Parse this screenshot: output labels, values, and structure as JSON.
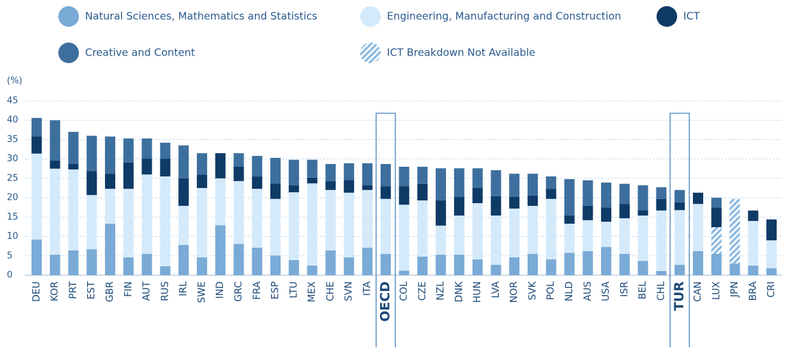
{
  "chart_data": {
    "type": "stacked_bar",
    "y_label": "(%)",
    "ylim": [
      0,
      45
    ],
    "yticks": [
      0,
      5,
      10,
      15,
      20,
      25,
      30,
      35,
      40,
      45
    ],
    "grid": true,
    "highlight": [
      19,
      35
    ],
    "categories": [
      "DEU",
      "KOR",
      "PRT",
      "EST",
      "GBR",
      "FIN",
      "AUT",
      "RUS",
      "IRL",
      "SWE",
      "IND",
      "GRC",
      "FRA",
      "ESP",
      "LTU",
      "MEX",
      "CHE",
      "SVN",
      "ITA",
      "OECD",
      "COL",
      "CZE",
      "NZL",
      "DNK",
      "HUN",
      "LVA",
      "NOR",
      "SVK",
      "POL",
      "NLD",
      "AUS",
      "USA",
      "ISR",
      "BEL",
      "CHL",
      "TUR",
      "CAN",
      "LUX",
      "JPN",
      "BRA",
      "CRI"
    ],
    "series": [
      {
        "name": "Natural Sciences, Mathematics and Statistics",
        "color": "#7aaad6",
        "values": [
          9.2,
          5.3,
          6.4,
          6.7,
          13.3,
          4.6,
          5.5,
          2.3,
          7.8,
          4.6,
          12.9,
          8.1,
          7.1,
          5.1,
          3.9,
          2.5,
          6.4,
          4.6,
          7.1,
          5.5,
          1.2,
          4.8,
          5.3,
          5.3,
          4.1,
          2.7,
          4.6,
          5.5,
          4.1,
          5.8,
          6.2,
          7.3,
          5.5,
          3.7,
          1.1,
          2.7,
          6.2,
          5.5,
          3.0,
          2.5,
          1.8
        ]
      },
      {
        "name": "Engineering, Manufacturing and Construction",
        "color": "#d4eafb",
        "values": [
          22.2,
          22.2,
          20.9,
          14.0,
          9.0,
          17.7,
          20.5,
          23.2,
          10.1,
          17.9,
          12.1,
          16.2,
          15.2,
          14.6,
          17.5,
          21.2,
          15.6,
          16.7,
          14.9,
          14.2,
          17.0,
          14.5,
          7.5,
          10.1,
          14.5,
          12.7,
          12.6,
          12.4,
          15.6,
          7.5,
          8.0,
          6.5,
          9.2,
          11.7,
          15.6,
          14.1,
          12.2,
          null,
          null,
          11.5,
          7.2
        ]
      },
      {
        "name": "ICT",
        "color": "#0e3a66",
        "values": [
          4.4,
          2.1,
          1.4,
          6.2,
          3.9,
          6.8,
          4.1,
          4.6,
          7.1,
          3.5,
          6.5,
          3.7,
          3.2,
          4.0,
          1.8,
          1.5,
          2.3,
          3.3,
          1.2,
          3.3,
          4.8,
          4.3,
          6.5,
          4.8,
          3.9,
          5.0,
          3.0,
          2.7,
          2.6,
          2.1,
          3.7,
          3.7,
          3.7,
          1.4,
          3.0,
          2.0,
          2.9,
          5.1,
          null,
          2.7,
          5.4
        ]
      },
      {
        "name": "Creative and Content",
        "color": "#3d6f9e",
        "values": [
          4.8,
          10.4,
          8.3,
          9.1,
          9.6,
          6.2,
          5.2,
          4.1,
          8.5,
          5.5,
          null,
          3.5,
          5.3,
          6.6,
          6.6,
          4.6,
          4.4,
          4.3,
          5.7,
          5.7,
          5.0,
          4.4,
          8.3,
          7.4,
          5.1,
          6.7,
          6.0,
          5.6,
          3.2,
          9.4,
          6.6,
          6.4,
          5.2,
          6.4,
          3.0,
          3.2,
          null,
          2.5,
          null,
          null,
          null
        ]
      },
      {
        "name": "ICT Breakdown Not Available",
        "color": "#8ab9e0",
        "hatch": true,
        "values": [
          null,
          null,
          null,
          null,
          null,
          null,
          null,
          null,
          null,
          null,
          null,
          null,
          null,
          null,
          null,
          null,
          null,
          null,
          null,
          null,
          null,
          null,
          null,
          null,
          null,
          null,
          null,
          null,
          null,
          null,
          null,
          null,
          null,
          null,
          null,
          null,
          null,
          6.9,
          16.7,
          null,
          null
        ]
      }
    ]
  }
}
